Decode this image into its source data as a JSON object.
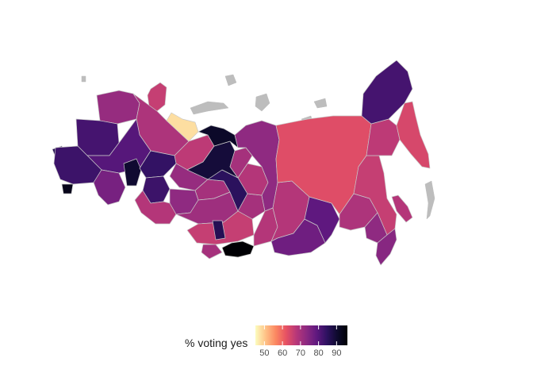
{
  "legend": {
    "title": "% voting yes",
    "ticks": [
      50,
      60,
      70,
      80,
      90
    ],
    "range": [
      45,
      96
    ],
    "colors": [
      "#fcfdbf",
      "#fec287",
      "#fb8761",
      "#e75263",
      "#b73779",
      "#8c2981",
      "#5f187f",
      "#2d1160",
      "#0e0a2e",
      "#000004"
    ]
  },
  "palette": {
    "magma_high": "#000004",
    "magma_low": "#fcfdbf",
    "border": "#c8c8c8",
    "missing": "#bdbdbd"
  },
  "regions": [
    {
      "id": "kaliningrad",
      "value": 86
    },
    {
      "id": "murmansk",
      "value": 66
    },
    {
      "id": "karelia",
      "value": 72
    },
    {
      "id": "arkhangelsk",
      "value": 69
    },
    {
      "id": "komi",
      "value": 67
    },
    {
      "id": "nenets",
      "value": 48
    },
    {
      "id": "western-core",
      "value": 82
    },
    {
      "id": "central-russia",
      "value": 80
    },
    {
      "id": "south-west",
      "value": 83
    },
    {
      "id": "crimea",
      "value": 93
    },
    {
      "id": "caucasus",
      "value": 90
    },
    {
      "id": "volga",
      "value": 76
    },
    {
      "id": "tatarstan",
      "value": 84
    },
    {
      "id": "bashkortostan",
      "value": 83
    },
    {
      "id": "perm",
      "value": 72
    },
    {
      "id": "sverdlovsk",
      "value": 70
    },
    {
      "id": "chelyabinsk",
      "value": 73
    },
    {
      "id": "orenburg",
      "value": 68
    },
    {
      "id": "kurgan",
      "value": 71
    },
    {
      "id": "tyumen",
      "value": 85
    },
    {
      "id": "khanty-mansi",
      "value": 89
    },
    {
      "id": "yamal-nenets",
      "value": 91
    },
    {
      "id": "omsk",
      "value": 70
    },
    {
      "id": "novosibirsk",
      "value": 68
    },
    {
      "id": "altai-krai",
      "value": 66
    },
    {
      "id": "altai-republic",
      "value": 70
    },
    {
      "id": "kemerovo",
      "value": 86
    },
    {
      "id": "tomsk",
      "value": 70
    },
    {
      "id": "krasnoyarsk",
      "value": 73
    },
    {
      "id": "tuva",
      "value": 96
    },
    {
      "id": "khakassia",
      "value": 68
    },
    {
      "id": "irkutsk",
      "value": 68
    },
    {
      "id": "buryatia",
      "value": 77
    },
    {
      "id": "zabaykalsky",
      "value": 79
    },
    {
      "id": "sakha",
      "value": 63
    },
    {
      "id": "amur",
      "value": 69
    },
    {
      "id": "khabarovsk",
      "value": 66
    },
    {
      "id": "jewish-ao",
      "value": 73
    },
    {
      "id": "primorsky",
      "value": 74
    },
    {
      "id": "magadan",
      "value": 67
    },
    {
      "id": "chukotka",
      "value": 82
    },
    {
      "id": "kamchatka",
      "value": 64
    },
    {
      "id": "sakhalin",
      "value": 68
    }
  ]
}
